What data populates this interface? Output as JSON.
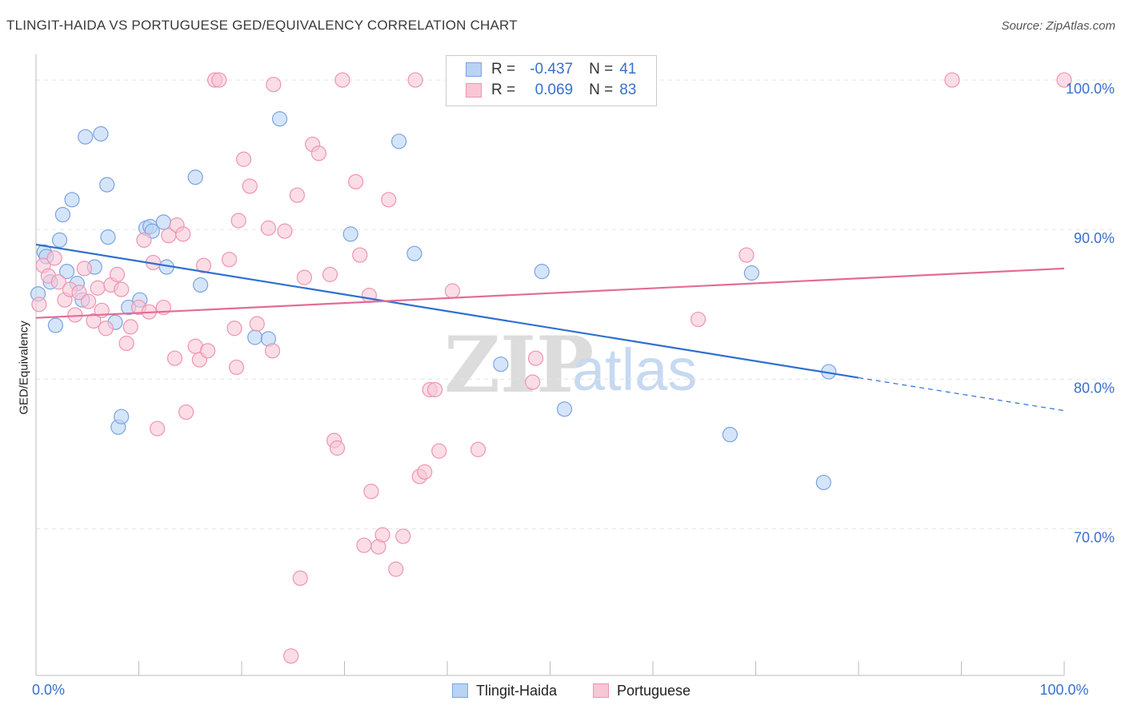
{
  "header": {
    "title": "TLINGIT-HAIDA VS PORTUGUESE GED/EQUIVALENCY CORRELATION CHART",
    "source": "Source: ZipAtlas.com"
  },
  "watermark": {
    "zip": "ZIP",
    "atlas": "atlas"
  },
  "legend": {
    "rows": [
      {
        "r_label": "R =",
        "r_value": "-0.437",
        "n_label": "N =",
        "n_value": "41",
        "fill": "#b9d3f5",
        "stroke": "#7ba3e0"
      },
      {
        "r_label": "R =",
        "r_value": "0.069",
        "n_label": "N =",
        "n_value": "83",
        "fill": "#f9c6d6",
        "stroke": "#ee94b2"
      }
    ]
  },
  "bottom_legend": [
    {
      "label": "Tlingit-Haida",
      "fill": "#b9d3f5",
      "stroke": "#7ba3e0"
    },
    {
      "label": "Portuguese",
      "fill": "#f9c6d6",
      "stroke": "#ee94b2"
    }
  ],
  "chart_data": {
    "type": "scatter",
    "title": "TLINGIT-HAIDA VS PORTUGUESE GED/EQUIVALENCY CORRELATION CHART",
    "xlabel": "",
    "ylabel": "GED/Equivalency",
    "xlim": [
      0,
      100
    ],
    "ylim": [
      60.2,
      101.5
    ],
    "x_tick_labels": [
      {
        "value": 0,
        "label": "0.0%"
      },
      {
        "value": 100,
        "label": "100.0%"
      }
    ],
    "y_tick_labels": [
      {
        "value": 100,
        "label": "100.0%"
      },
      {
        "value": 90,
        "label": "90.0%"
      },
      {
        "value": 80,
        "label": "80.0%"
      },
      {
        "value": 70,
        "label": "70.0%"
      }
    ],
    "grid": true,
    "legend_position": "top-center",
    "series": [
      {
        "name": "Tlingit-Haida",
        "color": "#b9d3f5",
        "edge": "#7ba3e0",
        "trend_color": "#2e6fd0",
        "trend": {
          "x0": 0,
          "y0": 89.0,
          "x1": 80,
          "y1": 80.1,
          "dash_to_x": 100,
          "dash_to_y": 77.9
        },
        "points": [
          [
            0.2,
            85.7
          ],
          [
            0.8,
            88.5
          ],
          [
            1.0,
            88.2
          ],
          [
            1.4,
            86.5
          ],
          [
            1.9,
            83.6
          ],
          [
            2.3,
            89.3
          ],
          [
            2.6,
            91.0
          ],
          [
            3.0,
            87.2
          ],
          [
            3.5,
            92.0
          ],
          [
            4.0,
            86.4
          ],
          [
            4.5,
            85.3
          ],
          [
            4.8,
            96.2
          ],
          [
            5.7,
            87.5
          ],
          [
            6.3,
            96.4
          ],
          [
            6.9,
            93.0
          ],
          [
            7.0,
            89.5
          ],
          [
            7.7,
            83.8
          ],
          [
            8.0,
            76.8
          ],
          [
            8.3,
            77.5
          ],
          [
            9.0,
            84.8
          ],
          [
            10.1,
            85.3
          ],
          [
            10.7,
            90.1
          ],
          [
            11.1,
            90.2
          ],
          [
            11.3,
            89.9
          ],
          [
            12.4,
            90.5
          ],
          [
            12.7,
            87.5
          ],
          [
            15.5,
            93.5
          ],
          [
            16.0,
            86.3
          ],
          [
            21.3,
            82.8
          ],
          [
            22.6,
            82.7
          ],
          [
            23.7,
            97.4
          ],
          [
            30.6,
            89.7
          ],
          [
            35.3,
            95.9
          ],
          [
            36.8,
            88.4
          ],
          [
            45.2,
            81.0
          ],
          [
            49.2,
            87.2
          ],
          [
            51.4,
            78.0
          ],
          [
            67.5,
            76.3
          ],
          [
            69.6,
            87.1
          ],
          [
            76.6,
            73.1
          ],
          [
            77.1,
            80.5
          ]
        ]
      },
      {
        "name": "Portuguese",
        "color": "#f9c6d6",
        "edge": "#ee94b2",
        "trend_color": "#e36c95",
        "trend": {
          "x0": 0,
          "y0": 84.1,
          "x1": 100,
          "y1": 87.4
        },
        "points": [
          [
            0.3,
            85.0
          ],
          [
            0.7,
            87.6
          ],
          [
            1.2,
            86.9
          ],
          [
            1.8,
            88.1
          ],
          [
            2.2,
            86.5
          ],
          [
            2.8,
            85.3
          ],
          [
            3.3,
            86.0
          ],
          [
            3.8,
            84.3
          ],
          [
            4.2,
            85.8
          ],
          [
            4.7,
            87.4
          ],
          [
            5.1,
            85.2
          ],
          [
            5.6,
            83.9
          ],
          [
            6.0,
            86.1
          ],
          [
            6.4,
            84.6
          ],
          [
            6.8,
            83.4
          ],
          [
            7.3,
            86.3
          ],
          [
            7.9,
            87.0
          ],
          [
            8.3,
            86.0
          ],
          [
            8.8,
            82.4
          ],
          [
            9.2,
            83.5
          ],
          [
            10.0,
            84.8
          ],
          [
            10.5,
            89.3
          ],
          [
            11.0,
            84.5
          ],
          [
            11.4,
            87.8
          ],
          [
            11.8,
            76.7
          ],
          [
            12.4,
            84.8
          ],
          [
            12.9,
            89.6
          ],
          [
            13.5,
            81.4
          ],
          [
            13.7,
            90.3
          ],
          [
            14.3,
            89.7
          ],
          [
            14.6,
            77.8
          ],
          [
            15.5,
            82.2
          ],
          [
            15.9,
            81.3
          ],
          [
            16.3,
            87.6
          ],
          [
            16.7,
            81.9
          ],
          [
            17.4,
            100.0
          ],
          [
            17.8,
            100.0
          ],
          [
            18.8,
            88.0
          ],
          [
            19.3,
            83.4
          ],
          [
            19.5,
            80.8
          ],
          [
            19.7,
            90.6
          ],
          [
            20.2,
            94.7
          ],
          [
            20.8,
            92.9
          ],
          [
            21.5,
            83.7
          ],
          [
            22.6,
            90.1
          ],
          [
            23.0,
            81.9
          ],
          [
            23.1,
            99.7
          ],
          [
            24.2,
            89.9
          ],
          [
            24.8,
            61.5
          ],
          [
            25.4,
            92.3
          ],
          [
            25.7,
            66.7
          ],
          [
            26.1,
            86.8
          ],
          [
            26.9,
            95.7
          ],
          [
            27.5,
            95.1
          ],
          [
            28.6,
            87.0
          ],
          [
            29.0,
            75.9
          ],
          [
            29.3,
            75.4
          ],
          [
            29.8,
            100.0
          ],
          [
            31.1,
            93.2
          ],
          [
            31.5,
            88.3
          ],
          [
            31.9,
            68.9
          ],
          [
            32.4,
            85.6
          ],
          [
            32.6,
            72.5
          ],
          [
            33.3,
            68.8
          ],
          [
            33.7,
            69.6
          ],
          [
            34.3,
            92.0
          ],
          [
            35.0,
            67.3
          ],
          [
            35.7,
            69.5
          ],
          [
            36.9,
            100.0
          ],
          [
            37.3,
            73.5
          ],
          [
            37.8,
            73.8
          ],
          [
            38.3,
            79.3
          ],
          [
            38.8,
            79.3
          ],
          [
            39.2,
            75.2
          ],
          [
            40.5,
            85.9
          ],
          [
            43.0,
            75.3
          ],
          [
            45.6,
            100.0
          ],
          [
            48.3,
            79.8
          ],
          [
            48.6,
            81.4
          ],
          [
            64.4,
            84.0
          ],
          [
            69.1,
            88.3
          ],
          [
            89.1,
            100.0
          ],
          [
            100.0,
            100.0
          ]
        ]
      }
    ]
  }
}
